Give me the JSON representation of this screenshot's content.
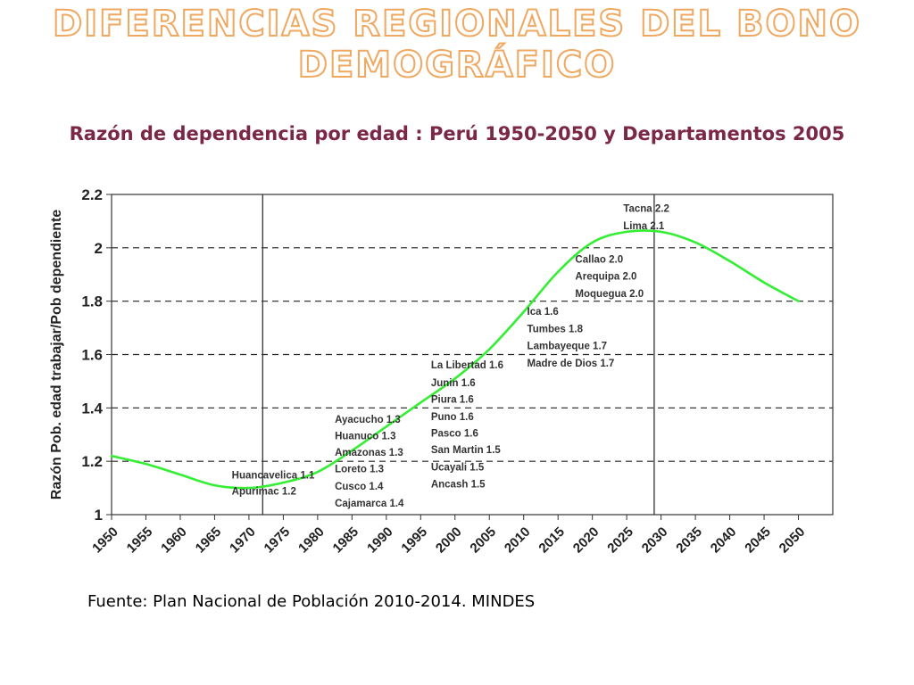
{
  "slide": {
    "title_line1": "DIFERENCIAS REGIONALES DEL BONO",
    "title_line2": "DEMOGRÁFICO",
    "subtitle": "Razón de dependencia por edad : Perú 1950-2050 y Departamentos 2005",
    "source": "Fuente: Plan Nacional de Población 2010-2014. MINDES"
  },
  "chart_data": {
    "type": "line",
    "ylabel": "Razón Pob. edad trabajar/Pob dependiente",
    "xlabel": "",
    "x_ticks": [
      "1950",
      "1955",
      "1960",
      "1965",
      "1970",
      "1975",
      "1980",
      "1985",
      "1990",
      "1995",
      "2000",
      "2005",
      "2010",
      "2015",
      "2020",
      "2025",
      "2030",
      "2035",
      "2040",
      "2045",
      "2050"
    ],
    "y_ticks": [
      "1",
      "1.2",
      "1.4",
      "1.6",
      "1.8",
      "2",
      "2.2"
    ],
    "ylim": [
      1,
      2.2
    ],
    "xlim": [
      1950,
      2055
    ],
    "grid": "horizontal-dashed",
    "line_color": "#33ee33",
    "series": [
      {
        "x": [
          1950,
          1955,
          1960,
          1965,
          1970,
          1975,
          1980,
          1985,
          1990,
          1995,
          2000,
          2005,
          2010,
          2015,
          2020,
          2025,
          2030,
          2035,
          2040,
          2045,
          2050
        ],
        "values": [
          1.22,
          1.19,
          1.15,
          1.11,
          1.1,
          1.12,
          1.16,
          1.24,
          1.33,
          1.42,
          1.51,
          1.62,
          1.76,
          1.91,
          2.02,
          2.06,
          2.06,
          2.02,
          1.95,
          1.87,
          1.8
        ]
      }
    ],
    "reference_lines_x": [
      1972,
      2029
    ],
    "annotations": [
      {
        "x": 1967.5,
        "y": 1.135,
        "text": "Huancavelica 1.1"
      },
      {
        "x": 1967.5,
        "y": 1.075,
        "text": "Apurimac 1.2"
      },
      {
        "x": 1982.5,
        "y": 1.345,
        "text": "Ayacucho 1.3"
      },
      {
        "x": 1982.5,
        "y": 1.283,
        "text": "Huanuco 1.3"
      },
      {
        "x": 1982.5,
        "y": 1.22,
        "text": "Amazonas 1.3"
      },
      {
        "x": 1982.5,
        "y": 1.158,
        "text": "Loreto 1.3"
      },
      {
        "x": 1982.5,
        "y": 1.093,
        "text": "Cusco 1.4"
      },
      {
        "x": 1982.5,
        "y": 1.03,
        "text": "Cajamarca 1.4"
      },
      {
        "x": 1996.5,
        "y": 1.548,
        "text": "La Libertad 1.6"
      },
      {
        "x": 1996.5,
        "y": 1.482,
        "text": "Junin 1.6"
      },
      {
        "x": 1996.5,
        "y": 1.42,
        "text": "Piura 1.6"
      },
      {
        "x": 1996.5,
        "y": 1.355,
        "text": "Puno 1.6"
      },
      {
        "x": 1996.5,
        "y": 1.293,
        "text": "Pasco 1.6"
      },
      {
        "x": 1996.5,
        "y": 1.23,
        "text": "San Martin 1.5"
      },
      {
        "x": 1996.5,
        "y": 1.165,
        "text": "Ucayali 1.5"
      },
      {
        "x": 1996.5,
        "y": 1.102,
        "text": "Ancash 1.5"
      },
      {
        "x": 2010.5,
        "y": 1.748,
        "text": "Ica 1.6"
      },
      {
        "x": 2010.5,
        "y": 1.683,
        "text": "Tumbes 1.8"
      },
      {
        "x": 2010.5,
        "y": 1.62,
        "text": "Lambayeque 1.7"
      },
      {
        "x": 2010.5,
        "y": 1.555,
        "text": "Madre de Dios 1.7"
      },
      {
        "x": 2017.5,
        "y": 1.945,
        "text": "Callao 2.0"
      },
      {
        "x": 2017.5,
        "y": 1.88,
        "text": "Arequipa 2.0"
      },
      {
        "x": 2017.5,
        "y": 1.815,
        "text": "Moquegua 2.0"
      },
      {
        "x": 2024.5,
        "y": 2.135,
        "text": "Tacna 2.2"
      },
      {
        "x": 2024.5,
        "y": 2.07,
        "text": "Lima 2.1"
      }
    ]
  }
}
